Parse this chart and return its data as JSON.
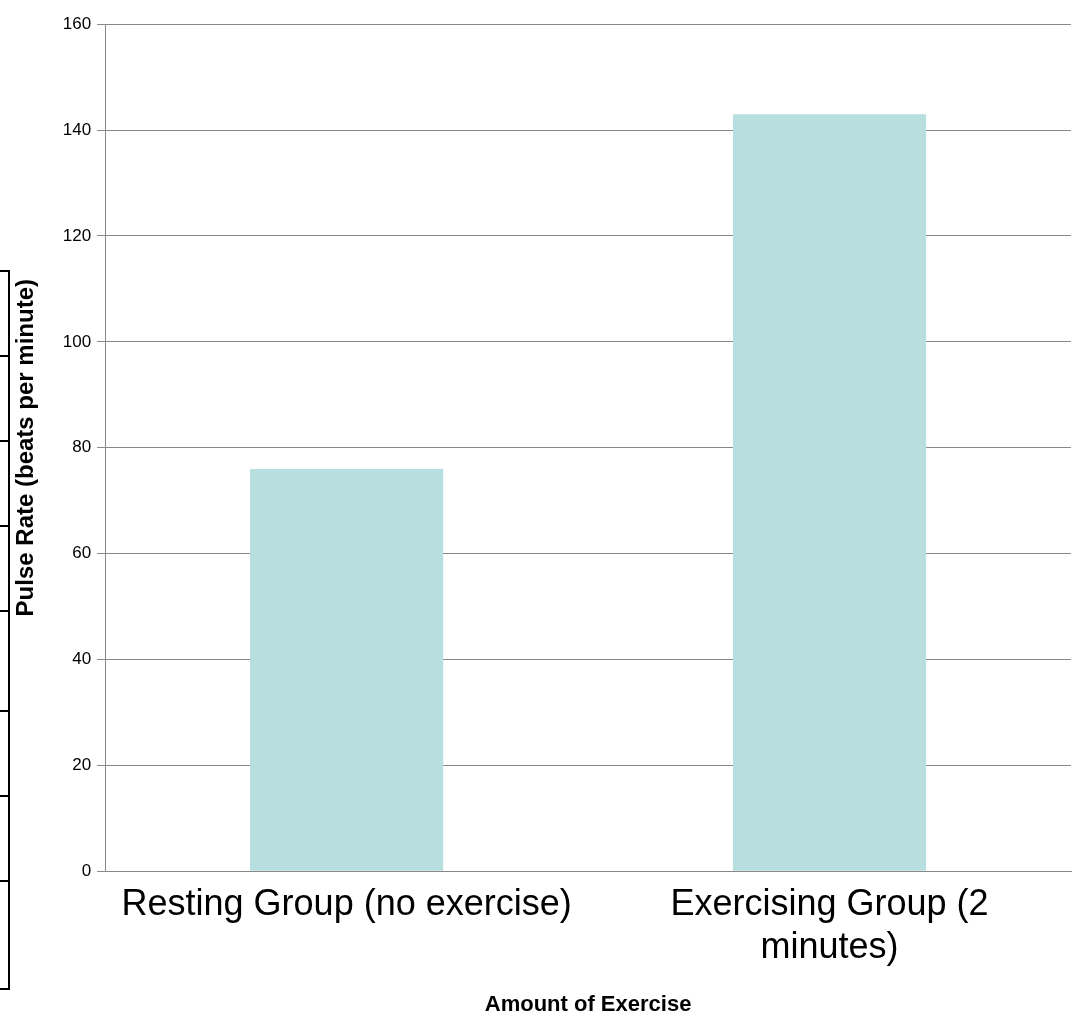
{
  "chart_data": {
    "type": "bar",
    "xlabel": "Amount of Exercise",
    "ylabel": "Pulse Rate (beats per minute)",
    "categories": [
      "Resting Group (no exercise)",
      "Exercising Group (2 minutes)"
    ],
    "values": [
      76,
      143
    ],
    "color": "#b8dfe0",
    "ylim": [
      0,
      160
    ],
    "yticks": [
      0,
      20,
      40,
      60,
      80,
      100,
      120,
      140,
      160
    ],
    "grid": "y",
    "legend": false
  }
}
